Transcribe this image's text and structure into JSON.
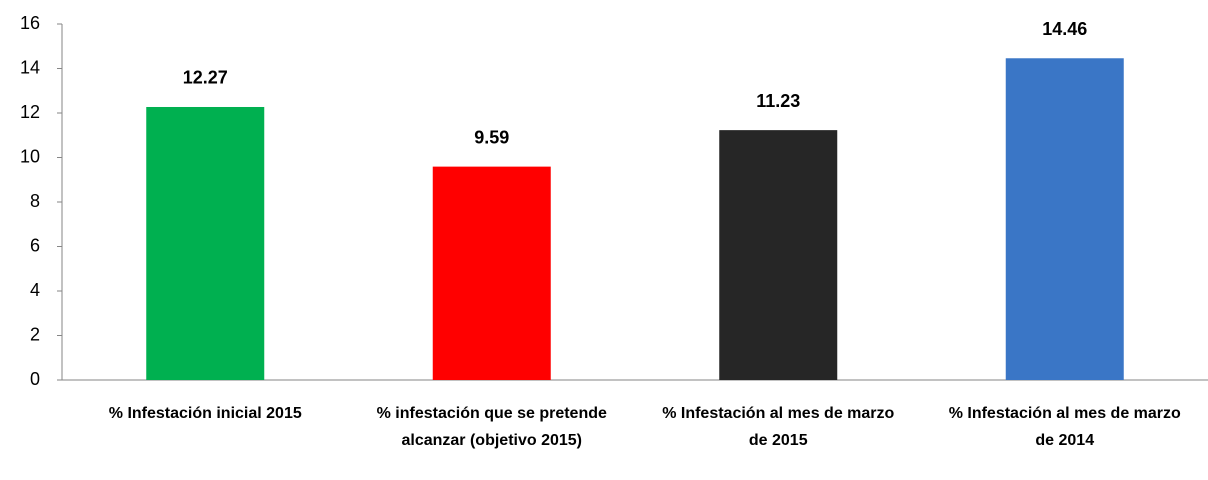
{
  "chart_data": {
    "type": "bar",
    "categories": [
      "% Infestación inicial 2015",
      "% infestación que se pretende alcanzar (objetivo 2015)",
      "% Infestación al mes de marzo de 2015",
      "% Infestación al mes de marzo de 2014"
    ],
    "values": [
      12.27,
      9.59,
      11.23,
      14.46
    ],
    "colors": [
      "#00b050",
      "#ff0000",
      "#262626",
      "#3a76c6"
    ],
    "ylim": [
      0,
      16
    ],
    "yticks": [
      0,
      2,
      4,
      6,
      8,
      10,
      12,
      14,
      16
    ],
    "grid": false
  }
}
